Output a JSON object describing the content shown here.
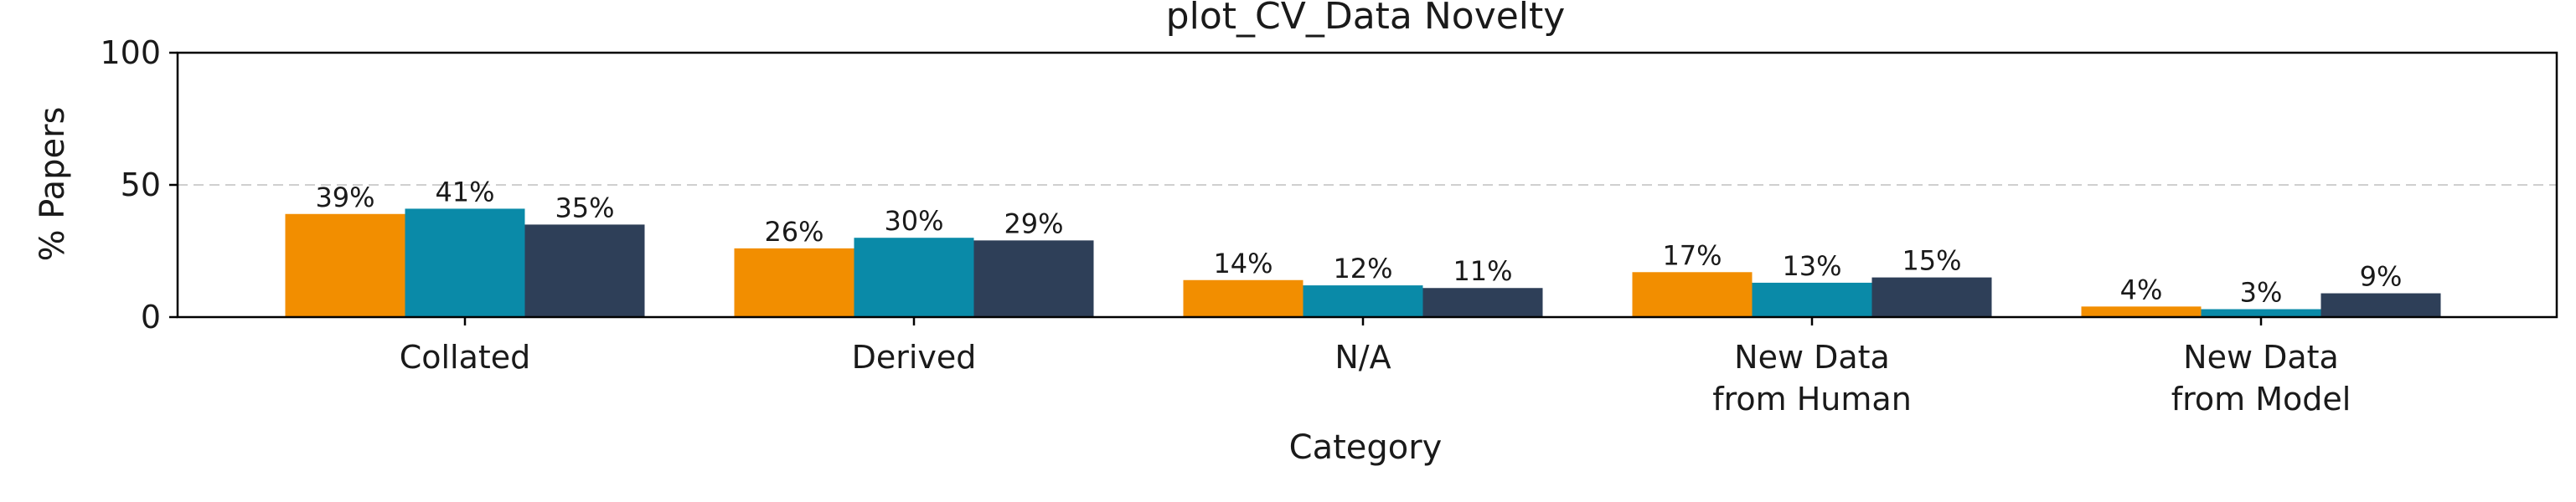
{
  "chart_data": {
    "type": "bar",
    "title": "plot_CV_Data Novelty",
    "xlabel": "Category",
    "ylabel": "% Papers",
    "ylim": [
      0,
      100
    ],
    "yticks": [
      0,
      50,
      100
    ],
    "gridline_y": 50,
    "categories": [
      [
        "Collated"
      ],
      [
        "Derived"
      ],
      [
        "N/A"
      ],
      [
        "New Data",
        "from Human"
      ],
      [
        "New Data",
        "from Model"
      ]
    ],
    "series": [
      {
        "values": [
          39,
          26,
          14,
          17,
          4
        ],
        "labels": [
          "39%",
          "26%",
          "14%",
          "17%",
          "4%"
        ],
        "color": "#f28e00"
      },
      {
        "values": [
          41,
          30,
          12,
          13,
          3
        ],
        "labels": [
          "41%",
          "30%",
          "12%",
          "13%",
          "3%"
        ],
        "color": "#0a8aa8"
      },
      {
        "values": [
          35,
          29,
          11,
          15,
          9
        ],
        "labels": [
          "35%",
          "29%",
          "11%",
          "15%",
          "9%"
        ],
        "color": "#2e3f58"
      }
    ],
    "grid": "dashed horizontal line at 50",
    "legend": "none"
  }
}
